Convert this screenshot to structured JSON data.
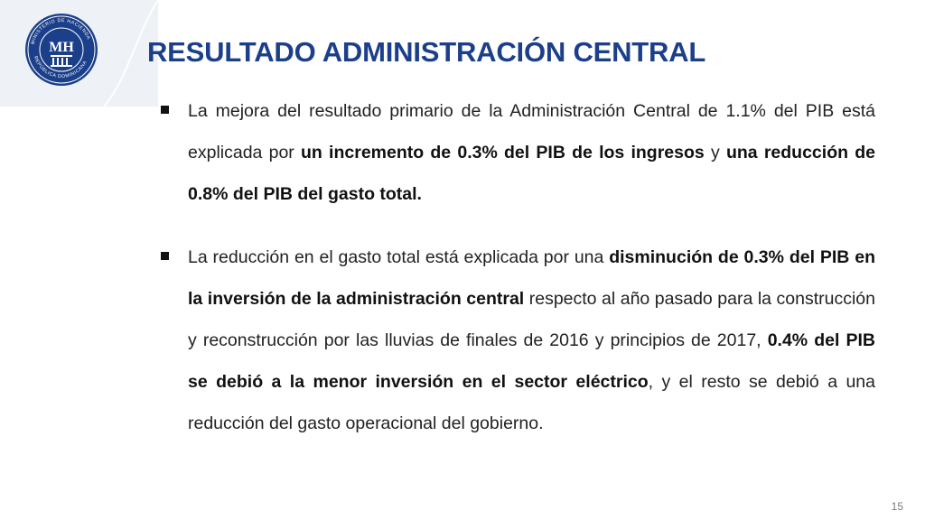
{
  "logo": {
    "ring_text": "MINISTERIO DE HACIENDA · REPÚBLICA DOMINICANA",
    "monogram": "MH"
  },
  "title": "RESULTADO ADMINISTRACIÓN CENTRAL",
  "bullets": [
    {
      "parts": [
        "La mejora del resultado primario de la Administración Central de 1.1% del PIB está explicada por ",
        "un incremento de 0.3% del PIB de los ingresos",
        " y ",
        "una reducción de 0.8% del PIB del gasto total."
      ]
    },
    {
      "parts": [
        "La reducción en el gasto total está explicada por una ",
        "disminución de 0.3% del PIB en la inversión de la administración central",
        " respecto al año pasado para la construcción y reconstrucción por las lluvias de finales de 2016 y principios de 2017, ",
        "0.4% del PIB se debió a la menor inversión en el sector eléctrico",
        ", y el resto se debió a una reducción del gasto operacional del gobierno."
      ]
    }
  ],
  "page_number": "15",
  "colors": {
    "title": "#1c3f8a",
    "corner_panel": "#eef1f6",
    "seal": "#1c3f8a"
  }
}
